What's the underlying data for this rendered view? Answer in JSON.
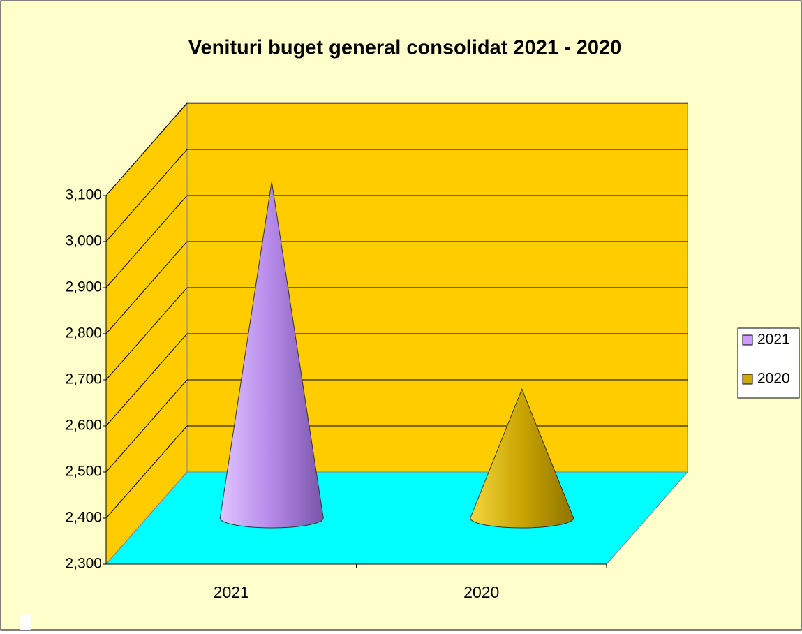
{
  "chart_data": {
    "type": "cone3d",
    "title": "Venituri buget general consolidat 2021 - 2020",
    "categories": [
      "2021",
      "2020"
    ],
    "series": [
      {
        "name": "2021",
        "color": "#cc99ff",
        "values": [
          3030,
          null
        ]
      },
      {
        "name": "2020",
        "color": "#ccaa00",
        "values": [
          null,
          2580
        ]
      }
    ],
    "ylim": [
      2300,
      3100
    ],
    "yticks": [
      {
        "value": 2300,
        "label": "2,300"
      },
      {
        "value": 2400,
        "label": "2,400"
      },
      {
        "value": 2500,
        "label": "2,500"
      },
      {
        "value": 2600,
        "label": "2,600"
      },
      {
        "value": 2700,
        "label": "2,700"
      },
      {
        "value": 2800,
        "label": "2,800"
      },
      {
        "value": 2900,
        "label": "2,900"
      },
      {
        "value": 3000,
        "label": "3,000"
      },
      {
        "value": 3100,
        "label": "3,100"
      }
    ],
    "grid": true,
    "legend": "right"
  }
}
